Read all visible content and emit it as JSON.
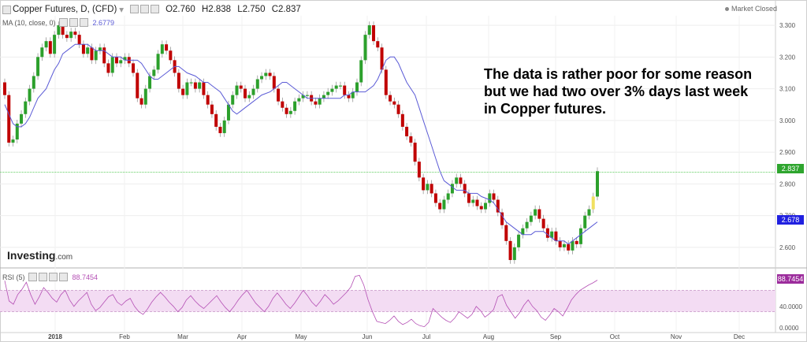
{
  "header": {
    "symbol": "Copper Futures, D, (CFD)",
    "ohlc": {
      "open": "O2.760",
      "high": "H2.838",
      "low": "L2.750",
      "close": "C2.837"
    },
    "market_status": "Market Closed"
  },
  "ma_indicator": {
    "label": "MA (10, close, 0)",
    "value": "2.6779",
    "color": "#5b5bd6"
  },
  "rsi_indicator": {
    "label": "RSI (5)",
    "value": "88.7454",
    "color": "#b44fb4"
  },
  "annotation": {
    "line1": "The data is rather poor for some reason",
    "line2": "but we had two over 3% days last week",
    "line3": "in Copper futures."
  },
  "logo": {
    "brand": "Investing",
    "suffix": ".com"
  },
  "price_badges": {
    "last": {
      "value": "2.837",
      "color": "#2ea52e"
    },
    "ma": {
      "value": "2.678",
      "color": "#2020e0"
    },
    "rsi": {
      "value": "88.7454",
      "color": "#9c2c9c"
    }
  },
  "chart_data": {
    "type": "candlestick",
    "x_ticks": [
      "2018",
      "Feb",
      "Mar",
      "Apr",
      "May",
      "Jun",
      "Jul",
      "Aug",
      "Sep",
      "Oct",
      "Nov",
      "Dec"
    ],
    "y_ticks": [
      "3.300",
      "3.200",
      "3.100",
      "3.000",
      "2.900",
      "2.800",
      "2.700",
      "2.600"
    ],
    "ylim": [
      2.54,
      3.33
    ],
    "up_color": "#2ca02c",
    "down_color": "#c00000",
    "last_price_line": 2.837,
    "closes": [
      3.08,
      2.93,
      2.94,
      2.99,
      3.02,
      3.06,
      3.1,
      3.14,
      3.2,
      3.23,
      3.25,
      3.21,
      3.27,
      3.3,
      3.27,
      3.26,
      3.28,
      3.27,
      3.24,
      3.21,
      3.23,
      3.19,
      3.22,
      3.23,
      3.18,
      3.15,
      3.2,
      3.18,
      3.19,
      3.2,
      3.18,
      3.15,
      3.07,
      3.05,
      3.1,
      3.14,
      3.16,
      3.21,
      3.24,
      3.22,
      3.19,
      3.15,
      3.1,
      3.08,
      3.12,
      3.12,
      3.1,
      3.12,
      3.08,
      3.05,
      3.02,
      2.98,
      2.96,
      3.0,
      3.05,
      3.08,
      3.11,
      3.1,
      3.07,
      3.08,
      3.1,
      3.13,
      3.14,
      3.15,
      3.14,
      3.1,
      3.06,
      3.04,
      3.02,
      3.03,
      3.06,
      3.07,
      3.08,
      3.08,
      3.06,
      3.05,
      3.07,
      3.08,
      3.09,
      3.1,
      3.11,
      3.11,
      3.08,
      3.07,
      3.09,
      3.12,
      3.19,
      3.27,
      3.3,
      3.25,
      3.23,
      3.16,
      3.08,
      3.06,
      3.05,
      3.02,
      2.98,
      2.95,
      2.93,
      2.87,
      2.82,
      2.78,
      2.8,
      2.77,
      2.74,
      2.72,
      2.75,
      2.77,
      2.8,
      2.82,
      2.8,
      2.77,
      2.74,
      2.75,
      2.73,
      2.72,
      2.74,
      2.77,
      2.75,
      2.71,
      2.67,
      2.62,
      2.56,
      2.6,
      2.64,
      2.66,
      2.68,
      2.7,
      2.72,
      2.69,
      2.66,
      2.63,
      2.65,
      2.62,
      2.6,
      2.61,
      2.59,
      2.62,
      2.61,
      2.66,
      2.7,
      2.72,
      2.76,
      2.84
    ],
    "ma_values": [
      3.05,
      3.02,
      2.99,
      2.98,
      2.98,
      2.99,
      3.01,
      3.04,
      3.07,
      3.1,
      3.13,
      3.16,
      3.18,
      3.21,
      3.22,
      3.23,
      3.24,
      3.24,
      3.24,
      3.24,
      3.23,
      3.22,
      3.22,
      3.22,
      3.21,
      3.2,
      3.2,
      3.19,
      3.19,
      3.19,
      3.19,
      3.18,
      3.16,
      3.14,
      3.13,
      3.13,
      3.14,
      3.15,
      3.16,
      3.17,
      3.17,
      3.16,
      3.15,
      3.14,
      3.13,
      3.12,
      3.12,
      3.11,
      3.1,
      3.09,
      3.07,
      3.05,
      3.03,
      3.02,
      3.03,
      3.04,
      3.05,
      3.06,
      3.07,
      3.08,
      3.09,
      3.1,
      3.11,
      3.12,
      3.12,
      3.11,
      3.1,
      3.09,
      3.08,
      3.07,
      3.07,
      3.07,
      3.07,
      3.07,
      3.07,
      3.07,
      3.07,
      3.08,
      3.08,
      3.09,
      3.09,
      3.09,
      3.09,
      3.1,
      3.11,
      3.13,
      3.16,
      3.19,
      3.2,
      3.2,
      3.18,
      3.15,
      3.12,
      3.08,
      3.04,
      3.0,
      2.96,
      2.92,
      2.88,
      2.84,
      2.81,
      2.8,
      2.79,
      2.78,
      2.78,
      2.78,
      2.77,
      2.77,
      2.77,
      2.76,
      2.75,
      2.74,
      2.72,
      2.7,
      2.68,
      2.67,
      2.66,
      2.65,
      2.64,
      2.64,
      2.64,
      2.65,
      2.65,
      2.65,
      2.64,
      2.63,
      2.62,
      2.62,
      2.61,
      2.62,
      2.63,
      2.64,
      2.65,
      2.66,
      2.67,
      2.68
    ],
    "rsi_ticks": [
      "40.0000",
      "0.0000"
    ],
    "rsi_values": [
      88,
      50,
      44,
      62,
      72,
      85,
      62,
      44,
      58,
      75,
      66,
      55,
      48,
      62,
      70,
      52,
      40,
      50,
      58,
      66,
      44,
      32,
      38,
      48,
      58,
      62,
      48,
      42,
      50,
      55,
      40,
      30,
      25,
      35,
      48,
      58,
      66,
      58,
      48,
      40,
      30,
      38,
      52,
      60,
      50,
      42,
      36,
      44,
      52,
      60,
      48,
      38,
      30,
      40,
      52,
      62,
      70,
      58,
      46,
      38,
      30,
      40,
      55,
      65,
      55,
      44,
      36,
      46,
      58,
      70,
      60,
      48,
      40,
      50,
      62,
      54,
      44,
      50,
      58,
      66,
      76,
      96,
      98,
      80,
      52,
      30,
      12,
      10,
      8,
      14,
      22,
      12,
      6,
      10,
      16,
      8,
      4,
      2,
      10,
      36,
      28,
      20,
      14,
      10,
      18,
      30,
      24,
      18,
      25,
      40,
      32,
      20,
      26,
      34,
      58,
      62,
      42,
      30,
      18,
      28,
      42,
      52,
      40,
      32,
      20,
      14,
      24,
      36,
      30,
      22,
      36,
      52,
      62,
      70,
      75,
      80,
      84,
      89
    ],
    "rsi_ylim": [
      0,
      100
    ],
    "rsi_band": [
      30,
      70
    ]
  }
}
